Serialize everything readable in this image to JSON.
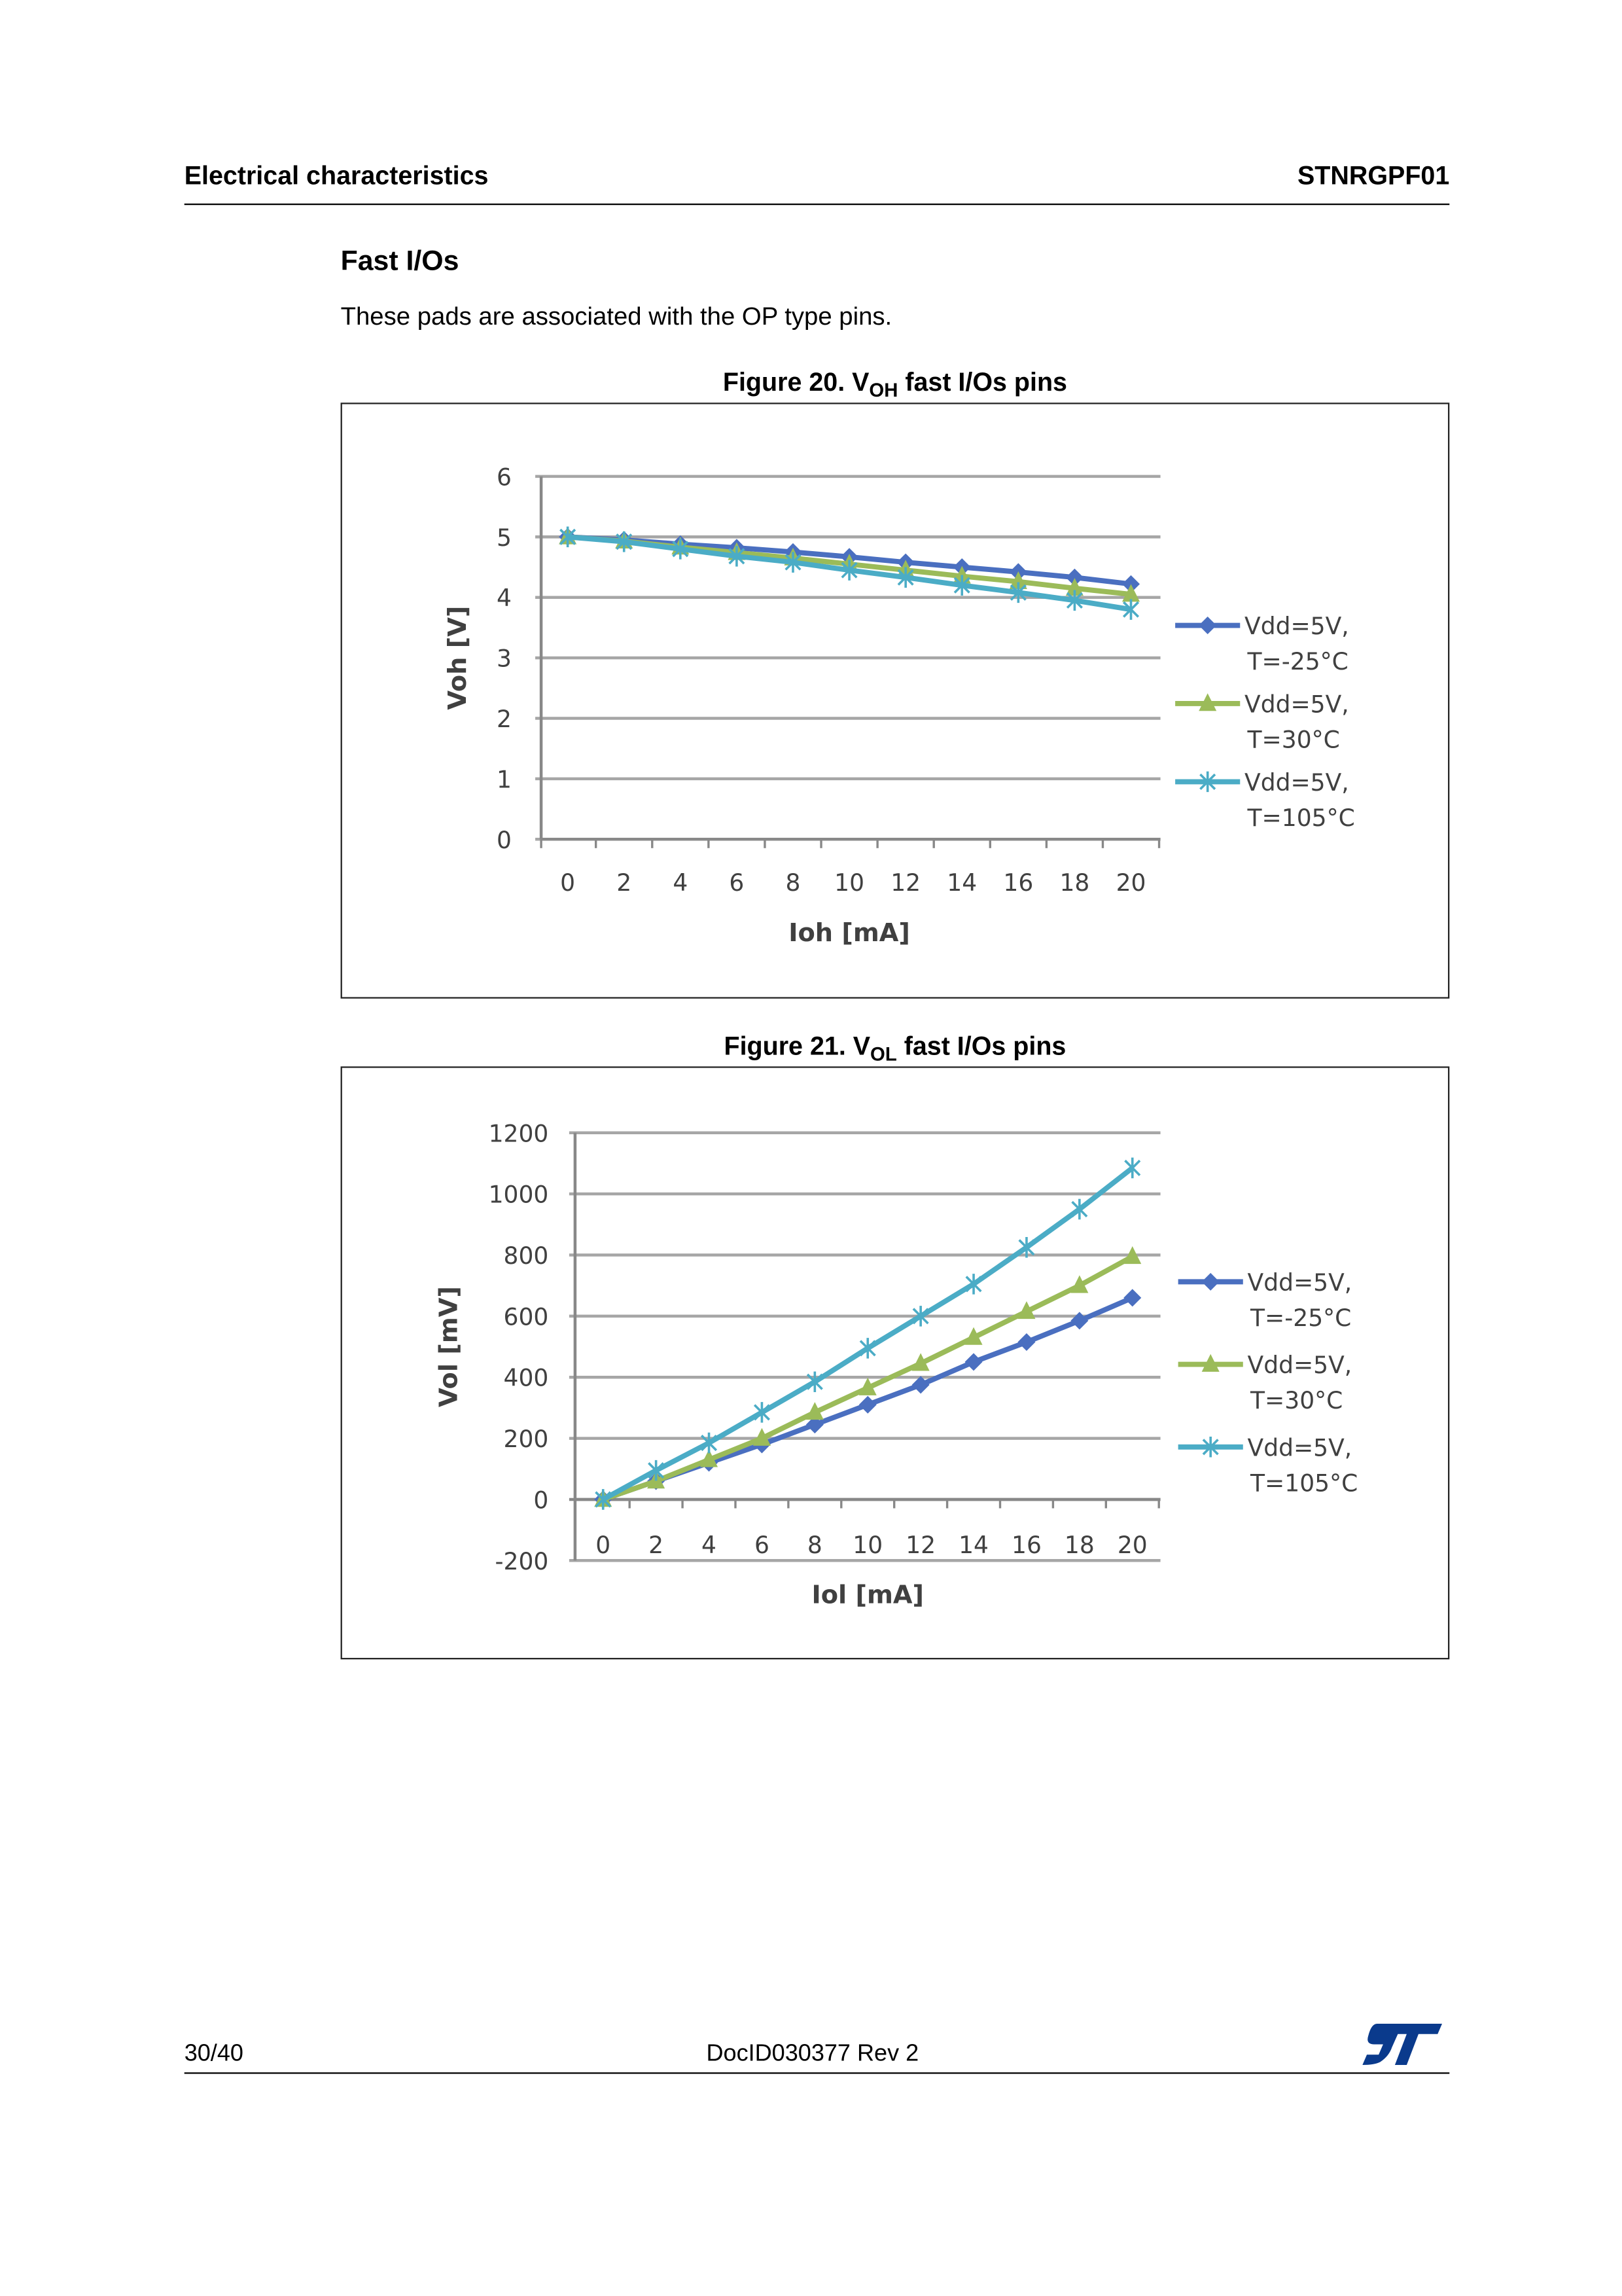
{
  "header": {
    "left": "Electrical characteristics",
    "right": "STNRGPF01"
  },
  "section": {
    "title": "Fast I/Os",
    "text": "These pads are associated with the OP type pins."
  },
  "figures": [
    {
      "caption_prefix": "Figure 20. V",
      "caption_sub": "OH",
      "caption_suffix": " fast I/Os pins"
    },
    {
      "caption_prefix": "Figure 21. V",
      "caption_sub": "OL",
      "caption_suffix": " fast I/Os pins"
    }
  ],
  "colors": {
    "series1": "#4a6fc0",
    "series2": "#9bbb59",
    "series3": "#4bacc6"
  },
  "chart_data": [
    {
      "type": "line",
      "title": "VOH fast I/Os pins",
      "xlabel": "Ioh [mA]",
      "ylabel": "Voh [V]",
      "x": [
        0,
        2,
        4,
        6,
        8,
        10,
        12,
        14,
        16,
        18,
        20
      ],
      "xticks": [
        0,
        2,
        4,
        6,
        8,
        10,
        12,
        14,
        16,
        18,
        20
      ],
      "yticks": [
        0,
        1,
        2,
        3,
        4,
        5,
        6
      ],
      "ylim": [
        0,
        6
      ],
      "xlim": [
        0,
        20
      ],
      "grid": true,
      "legend": "right",
      "series": [
        {
          "name": "Vdd=5V, T=-25°C",
          "marker": "diamond",
          "values": [
            5.0,
            4.95,
            4.88,
            4.82,
            4.75,
            4.67,
            4.58,
            4.5,
            4.42,
            4.33,
            4.22
          ]
        },
        {
          "name": "Vdd=5V, T=30°C",
          "marker": "triangle",
          "values": [
            5.0,
            4.93,
            4.83,
            4.74,
            4.65,
            4.55,
            4.45,
            4.35,
            4.26,
            4.15,
            4.05
          ]
        },
        {
          "name": "Vdd=5V, T=105°C",
          "marker": "asterisk",
          "values": [
            5.0,
            4.92,
            4.8,
            4.68,
            4.58,
            4.45,
            4.33,
            4.2,
            4.08,
            3.95,
            3.8
          ]
        }
      ]
    },
    {
      "type": "line",
      "title": "VOL fast I/Os pins",
      "xlabel": "Iol [mA]",
      "ylabel": "Vol [mV]",
      "x": [
        0,
        2,
        4,
        6,
        8,
        10,
        12,
        14,
        16,
        18,
        20
      ],
      "xticks": [
        0,
        2,
        4,
        6,
        8,
        10,
        12,
        14,
        16,
        18,
        20
      ],
      "yticks": [
        -200,
        0,
        200,
        400,
        600,
        800,
        1000,
        1200
      ],
      "ylim": [
        -200,
        1200
      ],
      "xlim": [
        0,
        20
      ],
      "grid": true,
      "legend": "right",
      "series": [
        {
          "name": "Vdd=5V, T=-25°C",
          "marker": "diamond",
          "values": [
            0,
            60,
            120,
            180,
            245,
            310,
            375,
            450,
            515,
            585,
            660
          ]
        },
        {
          "name": "Vdd=5V, T=30°C",
          "marker": "triangle",
          "values": [
            0,
            60,
            130,
            200,
            285,
            365,
            445,
            530,
            615,
            700,
            795
          ]
        },
        {
          "name": "Vdd=5V, T=105°C",
          "marker": "asterisk",
          "values": [
            0,
            95,
            185,
            285,
            385,
            495,
            600,
            705,
            825,
            950,
            1085
          ]
        }
      ]
    }
  ],
  "footer": {
    "page": "30/40",
    "doc": "DocID030377 Rev 2",
    "logo": "ST"
  }
}
